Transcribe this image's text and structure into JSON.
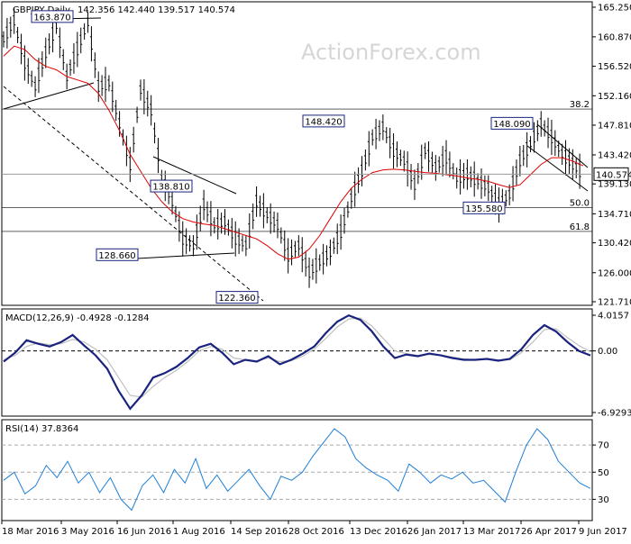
{
  "chart_data": [
    {
      "type": "ohlc",
      "title": "GBPJPY Daily",
      "ohlc_header": "142.356 142.440 139.517 140.574",
      "watermark": "ActionForex.com",
      "last_price": "140.574",
      "ylim": [
        121.71,
        165.25
      ],
      "y_ticks": [
        "165.250",
        "160.870",
        "156.520",
        "152.160",
        "147.810",
        "143.420",
        "139.130",
        "134.710",
        "130.420",
        "126.000",
        "121.710"
      ],
      "x_dates": [
        "18 Mar 2016",
        "3 May 2016",
        "16 Jun 2016",
        "1 Aug 2016",
        "14 Sep 2016",
        "28 Oct 2016",
        "13 Dec 2016",
        "26 Jan 2017",
        "13 Mar 2017",
        "26 Apr 2017",
        "9 Jun 2017"
      ],
      "annotations": [
        {
          "label": "163.870",
          "value": 163.87
        },
        {
          "label": "138.810",
          "value": 138.81
        },
        {
          "label": "128.660",
          "value": 128.66
        },
        {
          "label": "122.360",
          "value": 122.36
        },
        {
          "label": "148.420",
          "value": 148.42
        },
        {
          "label": "135.580",
          "value": 135.58
        },
        {
          "label": "148.090",
          "value": 148.09
        }
      ],
      "fib_levels": [
        {
          "label": "38.2",
          "value": 150.2
        },
        {
          "label": "50.0",
          "value": 135.6
        },
        {
          "label": "61.8",
          "value": 132.1
        }
      ],
      "close_series": [
        160.5,
        163.2,
        157.0,
        153.5,
        158.5,
        162.5,
        155.0,
        159.0,
        163.0,
        153.5,
        154.0,
        148.0,
        142.0,
        153.0,
        150.0,
        140.0,
        136.5,
        131.0,
        130.0,
        136.0,
        133.0,
        133.5,
        131.0,
        130.0,
        136.5,
        134.5,
        133.0,
        128.5,
        130.0,
        126.0,
        127.5,
        129.0,
        132.0,
        137.0,
        141.0,
        146.0,
        147.5,
        144.0,
        142.5,
        139.0,
        144.0,
        141.5,
        143.0,
        140.0,
        140.5,
        139.5,
        138.5,
        136.0,
        137.5,
        142.5,
        145.0,
        148.0,
        146.0,
        143.5,
        142.0,
        140.5
      ],
      "ma_series": [
        158.0,
        159.5,
        159.0,
        157.5,
        156.5,
        156.0,
        155.0,
        154.5,
        154.0,
        152.5,
        150.0,
        147.0,
        143.5,
        141.0,
        138.5,
        136.5,
        135.0,
        134.0,
        133.5,
        133.2,
        133.0,
        132.5,
        132.0,
        131.5,
        131.0,
        130.0,
        128.8,
        128.0,
        128.3,
        129.5,
        131.5,
        134.0,
        136.5,
        138.5,
        139.8,
        140.8,
        141.2,
        141.3,
        141.2,
        141.0,
        140.8,
        140.7,
        140.5,
        140.3,
        140.0,
        139.8,
        139.5,
        139.0,
        138.6,
        139.0,
        140.5,
        142.0,
        143.0,
        143.0,
        142.5,
        141.8
      ]
    },
    {
      "type": "line",
      "title": "MACD(12,26,9) -0.4928 -0.1284",
      "ylim": [
        -6.9293,
        4.0157
      ],
      "y_ticks": [
        "4.0157",
        "0.00",
        "-6.9293"
      ],
      "series": [
        {
          "name": "MACD",
          "values": [
            -1.2,
            -0.2,
            1.2,
            0.8,
            0.5,
            1.0,
            1.8,
            0.6,
            -0.5,
            -2.0,
            -4.5,
            -6.5,
            -5.0,
            -3.0,
            -2.5,
            -1.8,
            -0.8,
            0.4,
            0.8,
            -0.2,
            -1.5,
            -1.0,
            -1.2,
            -0.6,
            -1.5,
            -1.0,
            -0.3,
            0.5,
            2.0,
            3.3,
            4.0,
            3.5,
            2.2,
            0.5,
            -0.8,
            -0.4,
            -0.6,
            -0.3,
            -0.5,
            -0.8,
            -1.0,
            -1.0,
            -0.9,
            -1.1,
            -0.9,
            0.2,
            1.8,
            2.9,
            2.2,
            1.0,
            0.0,
            -0.5
          ]
        },
        {
          "name": "Signal",
          "values": [
            -1.0,
            -0.5,
            0.5,
            0.9,
            0.7,
            0.8,
            1.3,
            1.0,
            0.2,
            -1.0,
            -3.0,
            -5.0,
            -5.2,
            -4.0,
            -3.0,
            -2.2,
            -1.2,
            0.0,
            0.5,
            0.2,
            -0.8,
            -1.0,
            -1.1,
            -0.8,
            -1.2,
            -1.1,
            -0.6,
            0.2,
            1.4,
            2.7,
            3.6,
            3.7,
            2.8,
            1.4,
            0.0,
            -0.3,
            -0.5,
            -0.4,
            -0.5,
            -0.7,
            -0.9,
            -1.0,
            -0.9,
            -1.0,
            -1.0,
            -0.2,
            1.0,
            2.4,
            2.5,
            1.5,
            0.6,
            -0.1
          ]
        }
      ]
    },
    {
      "type": "line",
      "title": "RSI(14) 37.8364",
      "ylim": [
        17,
        86
      ],
      "y_ticks": [
        "70",
        "50",
        "30"
      ],
      "series": [
        {
          "name": "RSI",
          "values": [
            44,
            50,
            34,
            40,
            55,
            46,
            58,
            42,
            50,
            35,
            46,
            30,
            22,
            40,
            48,
            35,
            52,
            42,
            60,
            38,
            48,
            36,
            44,
            52,
            40,
            30,
            47,
            44,
            50,
            62,
            72,
            82,
            76,
            60,
            53,
            48,
            44,
            36,
            56,
            50,
            42,
            48,
            45,
            50,
            42,
            44,
            36,
            28,
            50,
            70,
            82,
            74,
            58,
            50,
            42,
            38
          ]
        }
      ]
    }
  ]
}
